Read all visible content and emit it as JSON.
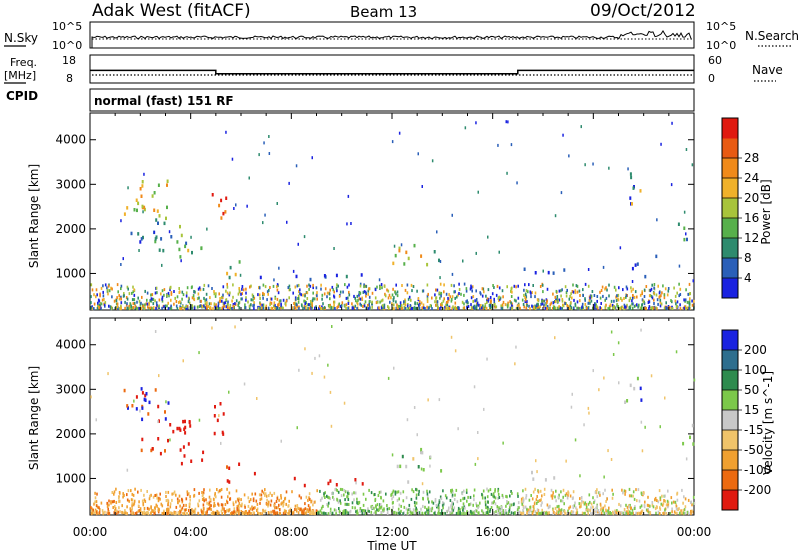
{
  "header": {
    "station": "Adak West (fitACF)",
    "beam": "Beam 13",
    "date": "09/Oct/2012"
  },
  "top_panels": {
    "nsky_label": "N.Sky",
    "nsearch_label": "N.Search",
    "nsky_ticks": [
      "10^5",
      "10^0"
    ],
    "nsearch_ticks": [
      "10^5",
      "10^0"
    ],
    "freq_label": "Freq.",
    "freq_unit": "[MHz]",
    "freq_ticks": [
      "18",
      "8"
    ],
    "nave_label": "Nave",
    "nave_ticks": [
      "60",
      "0"
    ],
    "cpid_label": "CPID",
    "cpid_text": "normal (fast) 151 RF"
  },
  "chart_data": [
    {
      "type": "line",
      "name": "frequency",
      "xlabel": "Time UT",
      "x_hours": [
        0,
        5,
        5,
        17,
        17,
        24
      ],
      "values": [
        12.5,
        12.5,
        11.3,
        11.3,
        12.5,
        12.5
      ],
      "ylim": [
        8,
        18
      ]
    },
    {
      "type": "heatmap",
      "ylabel": "Slant Range [km]",
      "xlabel": "Time UT",
      "xlim_hours": [
        0,
        24
      ],
      "ylim": [
        180,
        4600
      ],
      "y_ticks": [
        "1000",
        "2000",
        "3000",
        "4000"
      ],
      "colorbar_label": "Power [dB]",
      "colorbar_ticks": [
        "4",
        "8",
        "12",
        "16",
        "20",
        "24",
        "28"
      ],
      "colorbar_colors": [
        "#1a22e0",
        "#2a5fb8",
        "#2e8b6e",
        "#57b04b",
        "#a8c43b",
        "#f0b12a",
        "#f08a1a",
        "#e85a12",
        "#e01a10"
      ]
    },
    {
      "type": "heatmap",
      "ylabel": "Slant Range [km]",
      "xlabel": "Time UT",
      "xlim_hours": [
        0,
        24
      ],
      "ylim": [
        180,
        4600
      ],
      "y_ticks": [
        "1000",
        "2000",
        "3000",
        "4000"
      ],
      "colorbar_label": "Velocity [m s^-1]",
      "colorbar_ticks": [
        "200",
        "100",
        "50",
        "15",
        "-15",
        "-50",
        "-100",
        "-200"
      ],
      "colorbar_colors": [
        "#1a22e0",
        "#2e6e8e",
        "#2e8b4e",
        "#7cc84a",
        "#c8c8c8",
        "#f0c46a",
        "#f0a030",
        "#ec6a10",
        "#e01a10"
      ]
    }
  ],
  "x_ticks": [
    "00:00",
    "04:00",
    "08:00",
    "12:00",
    "16:00",
    "20:00",
    "00:00"
  ],
  "x_title": "Time UT"
}
